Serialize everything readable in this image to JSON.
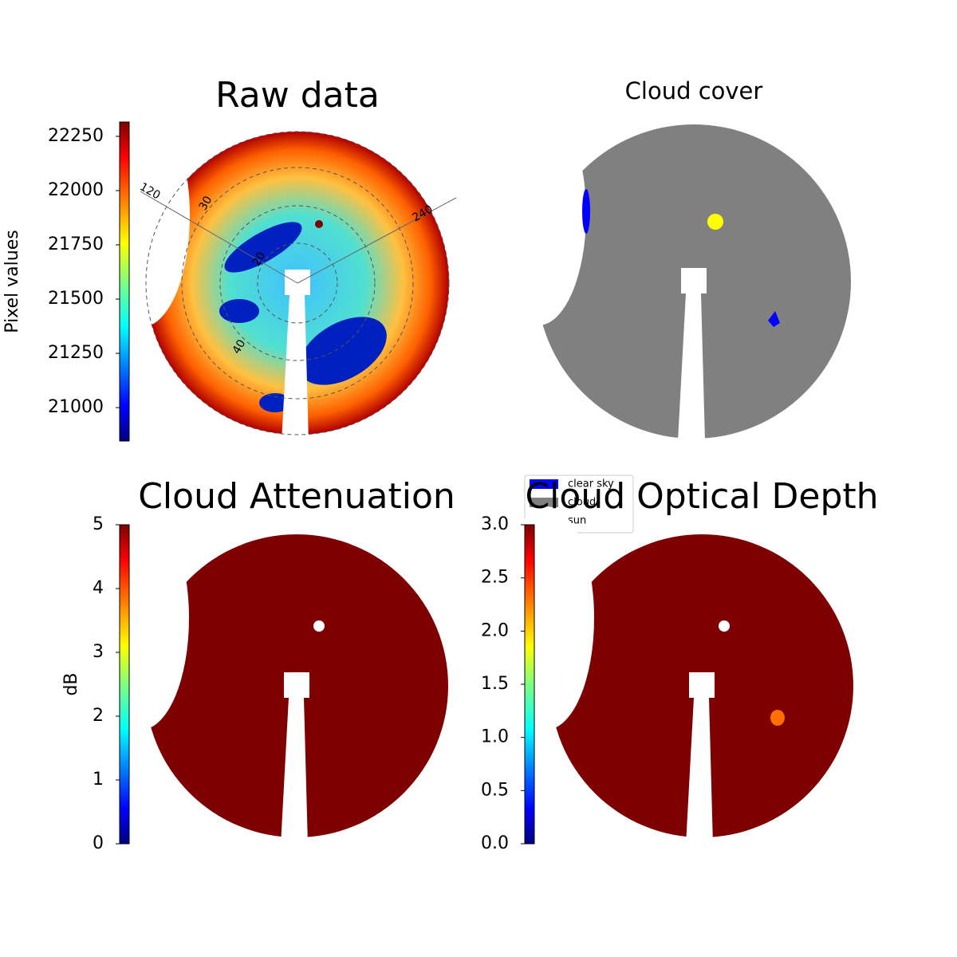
{
  "chart_data": [
    {
      "type": "image",
      "title": "Raw data",
      "colorbar_label": "Pixel values",
      "colormap": "jet",
      "clim": [
        20846,
        22316
      ],
      "cticks": [
        21000,
        21250,
        21500,
        21750,
        22000,
        22250
      ],
      "polar": {
        "angle_ticks": [
          120,
          240
        ],
        "radius_ticks": [
          20,
          30,
          40
        ]
      }
    },
    {
      "type": "image",
      "title": "Cloud cover",
      "series": [
        {
          "name": "clear sky",
          "color": "#0000ff"
        },
        {
          "name": "cloud",
          "color": "#808080"
        },
        {
          "name": "sun",
          "color": "#ffff00"
        }
      ]
    },
    {
      "type": "image",
      "title": "Cloud Attenuation",
      "colorbar_label": "dB",
      "colormap": "jet",
      "clim": [
        0,
        5
      ],
      "cticks": [
        0,
        1,
        2,
        3,
        4,
        5
      ]
    },
    {
      "type": "image",
      "title": "Cloud Optical Depth",
      "colormap": "jet",
      "clim": [
        0,
        3
      ],
      "cticks": [
        {
          "value": 0,
          "label": "0.0"
        },
        {
          "value": 0.5,
          "label": "0.5"
        },
        {
          "value": 1,
          "label": "1.0"
        },
        {
          "value": 1.5,
          "label": "1.5"
        },
        {
          "value": 2,
          "label": "2.0"
        },
        {
          "value": 2.5,
          "label": "2.5"
        },
        {
          "value": 3,
          "label": "3.0"
        }
      ]
    }
  ]
}
